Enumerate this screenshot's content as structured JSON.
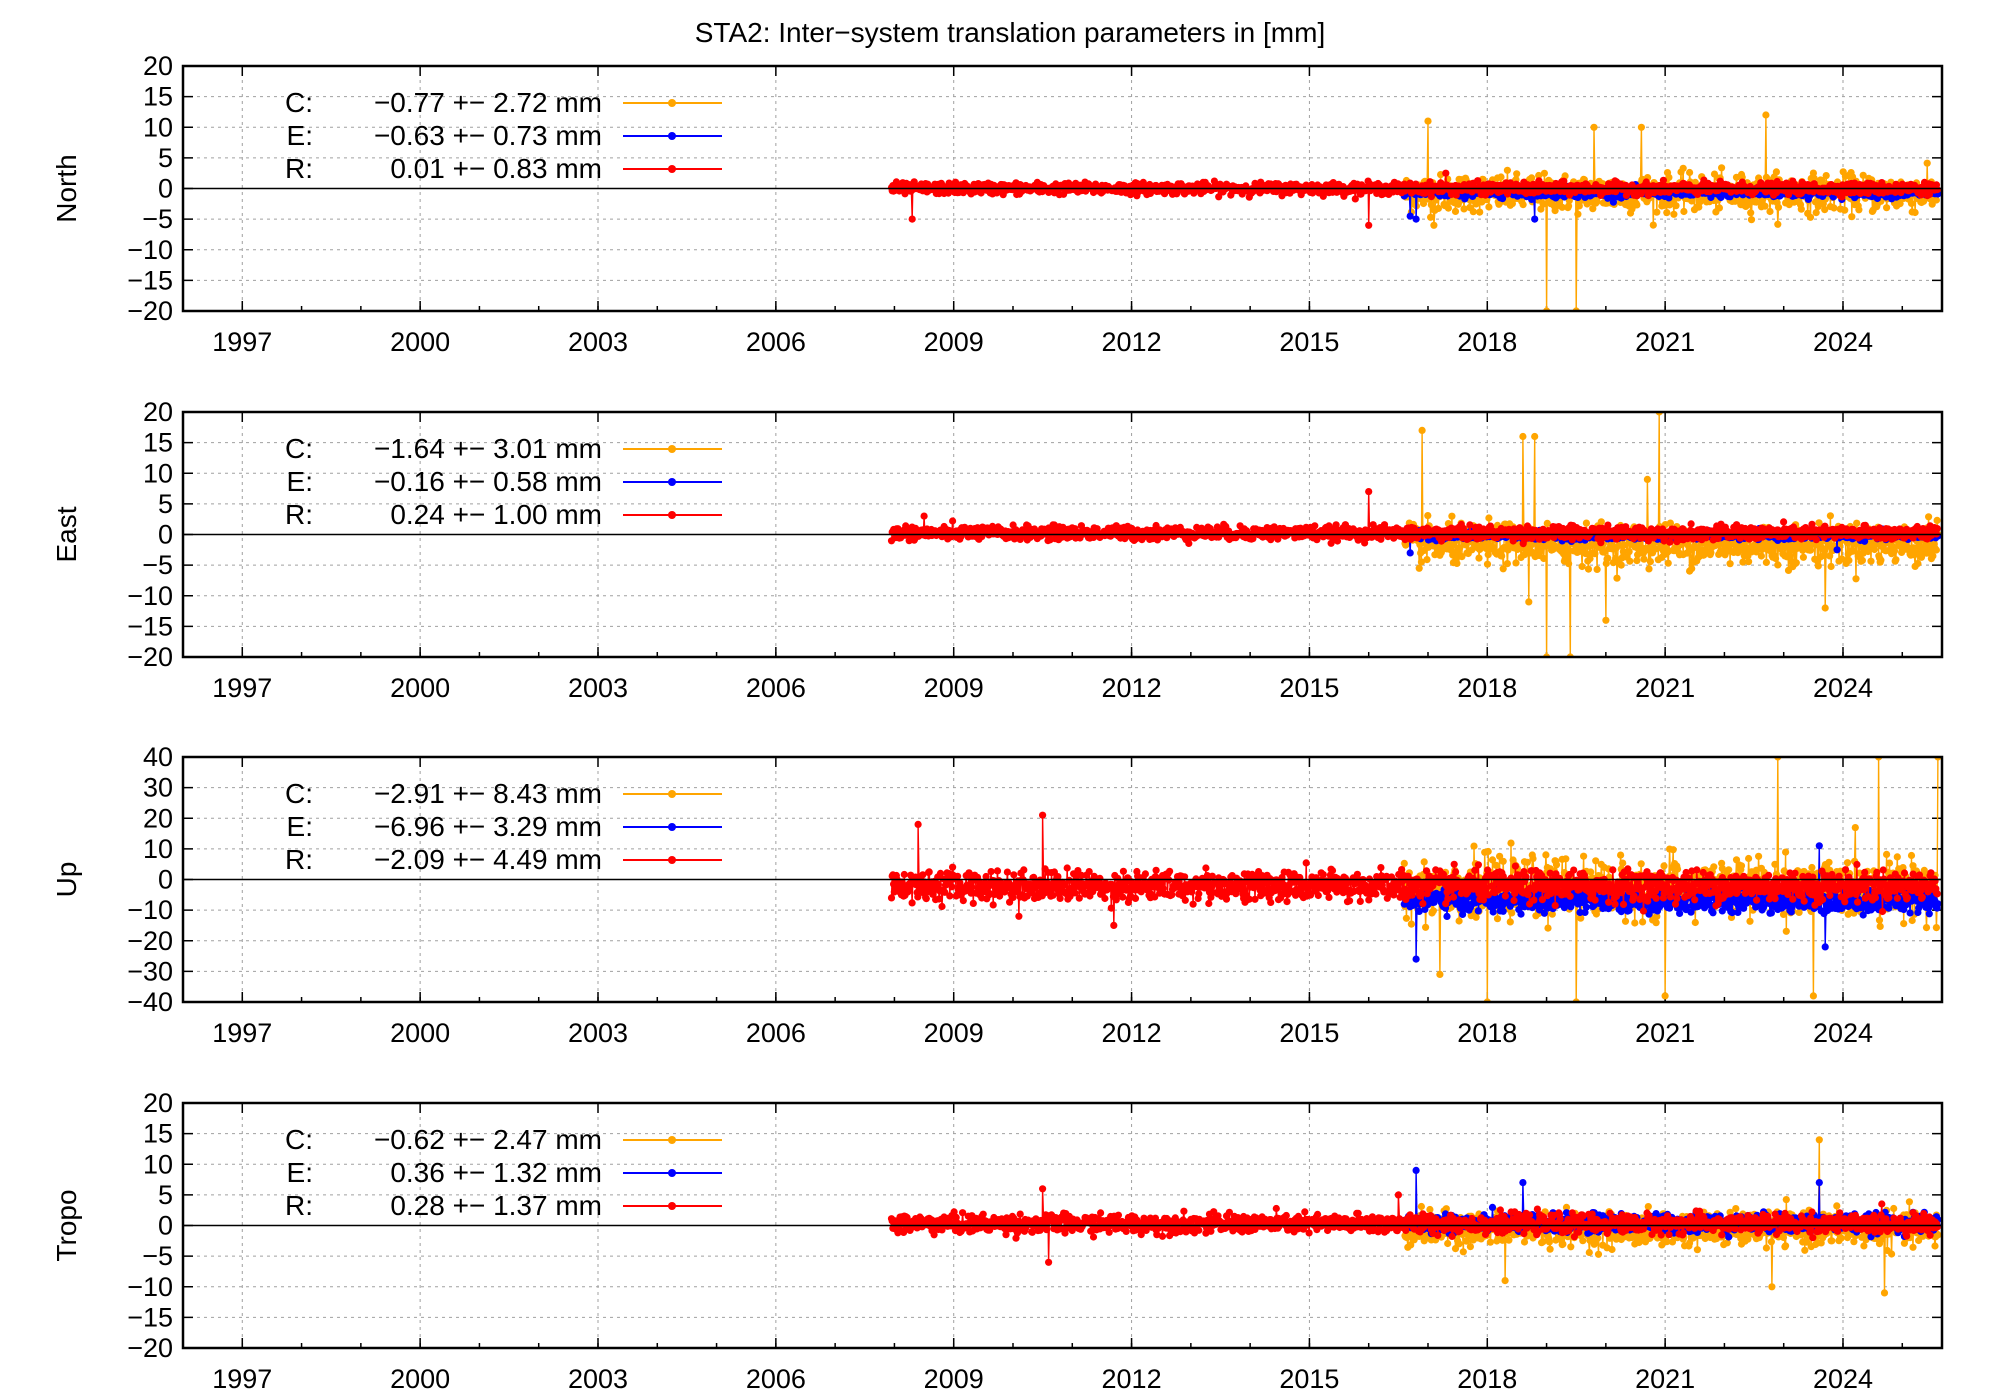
{
  "title": "STA2: Inter−system translation parameters in [mm]",
  "chart_data": [
    {
      "type": "line",
      "ylabel": "North",
      "ylim": [
        -20,
        20
      ],
      "yticks": [
        "20",
        "15",
        "10",
        "5",
        "0",
        "−5",
        "−10",
        "−15",
        "−20"
      ],
      "xticks": [
        "1997",
        "2000",
        "2003",
        "2006",
        "2009",
        "2012",
        "2015",
        "2018",
        "2021",
        "2024"
      ],
      "xlim": [
        1996.0,
        2025.67
      ],
      "series": [
        {
          "key": "C",
          "name": "C:",
          "stats": "−0.77 +− 2.72 mm",
          "color": "#FFA500",
          "start": 2016.6,
          "end": 2025.6,
          "mean": -0.77,
          "sd": 2.72,
          "spikes": [
            [
              2017.0,
              11
            ],
            [
              2019.0,
              -20
            ],
            [
              2019.5,
              -20
            ],
            [
              2019.8,
              10
            ],
            [
              2022.7,
              12
            ],
            [
              2020.6,
              10
            ],
            [
              2017.1,
              -6
            ]
          ]
        },
        {
          "key": "E",
          "name": "E:",
          "stats": "−0.63 +− 0.73 mm",
          "color": "#0000FF",
          "start": 2016.6,
          "end": 2025.6,
          "mean": -0.63,
          "sd": 0.73,
          "spikes": [
            [
              2016.7,
              -4.5
            ],
            [
              2016.8,
              -5
            ],
            [
              2018.8,
              -5
            ]
          ]
        },
        {
          "key": "R",
          "name": "R:",
          "stats": "0.01 +− 0.83 mm",
          "color": "#FF0000",
          "start": 2007.95,
          "end": 2025.6,
          "mean": 0.01,
          "sd": 0.83,
          "spikes": [
            [
              2016.0,
              -6
            ],
            [
              2008.3,
              -5
            ],
            [
              2017.3,
              2.5
            ]
          ]
        }
      ]
    },
    {
      "type": "line",
      "ylabel": "East",
      "ylim": [
        -20,
        20
      ],
      "yticks": [
        "20",
        "15",
        "10",
        "5",
        "0",
        "−5",
        "−10",
        "−15",
        "−20"
      ],
      "xticks": [
        "1997",
        "2000",
        "2003",
        "2006",
        "2009",
        "2012",
        "2015",
        "2018",
        "2021",
        "2024"
      ],
      "xlim": [
        1996.0,
        2025.67
      ],
      "series": [
        {
          "key": "C",
          "name": "C:",
          "stats": "−1.64 +− 3.01 mm",
          "color": "#FFA500",
          "start": 2016.6,
          "end": 2025.6,
          "mean": -1.64,
          "sd": 3.01,
          "spikes": [
            [
              2016.9,
              17
            ],
            [
              2018.6,
              16
            ],
            [
              2018.8,
              16
            ],
            [
              2019.0,
              16
            ],
            [
              2020.9,
              20
            ],
            [
              2020.7,
              9
            ],
            [
              2018.7,
              -11
            ],
            [
              2019.0,
              -20
            ],
            [
              2019.4,
              -20
            ],
            [
              2020.0,
              -14
            ],
            [
              2023.7,
              -12
            ]
          ]
        },
        {
          "key": "E",
          "name": "E:",
          "stats": "−0.16 +− 0.58 mm",
          "color": "#0000FF",
          "start": 2016.6,
          "end": 2025.6,
          "mean": -0.16,
          "sd": 0.58,
          "spikes": [
            [
              2016.7,
              -3
            ],
            [
              2023.9,
              -2.5
            ]
          ]
        },
        {
          "key": "R",
          "name": "R:",
          "stats": "0.24 +− 1.00 mm",
          "color": "#FF0000",
          "start": 2007.95,
          "end": 2025.6,
          "mean": 0.24,
          "sd": 1.0,
          "spikes": [
            [
              2016.0,
              7
            ],
            [
              2008.5,
              3
            ]
          ]
        }
      ]
    },
    {
      "type": "line",
      "ylabel": "Up",
      "ylim": [
        -40,
        40
      ],
      "yticks": [
        "40",
        "30",
        "20",
        "10",
        "0",
        "−10",
        "−20",
        "−30",
        "−40"
      ],
      "xticks": [
        "1997",
        "2000",
        "2003",
        "2006",
        "2009",
        "2012",
        "2015",
        "2018",
        "2021",
        "2024"
      ],
      "xlim": [
        1996.0,
        2025.67
      ],
      "series": [
        {
          "key": "C",
          "name": "C:",
          "stats": "−2.91 +− 8.43 mm",
          "color": "#FFA500",
          "start": 2016.6,
          "end": 2025.6,
          "mean": -2.91,
          "sd": 8.43,
          "spikes": [
            [
              2022.9,
              40
            ],
            [
              2024.6,
              40
            ],
            [
              2025.6,
              40
            ],
            [
              2017.2,
              -31
            ],
            [
              2018.0,
              -40
            ],
            [
              2019.5,
              -40
            ],
            [
              2021.0,
              -38
            ],
            [
              2023.5,
              -38
            ]
          ]
        },
        {
          "key": "E",
          "name": "E:",
          "stats": "−6.96 +− 3.29 mm",
          "color": "#0000FF",
          "start": 2016.6,
          "end": 2025.6,
          "mean": -6.96,
          "sd": 3.29,
          "spikes": [
            [
              2016.8,
              -26
            ],
            [
              2023.6,
              11
            ],
            [
              2023.7,
              -22
            ]
          ]
        },
        {
          "key": "R",
          "name": "R:",
          "stats": "−2.09 +− 4.49 mm",
          "color": "#FF0000",
          "start": 2007.95,
          "end": 2025.6,
          "mean": -2.09,
          "sd": 4.49,
          "spikes": [
            [
              2008.4,
              18
            ],
            [
              2010.5,
              21
            ],
            [
              2011.7,
              -15
            ],
            [
              2010.1,
              -12
            ]
          ]
        }
      ]
    },
    {
      "type": "line",
      "ylabel": "Tropo",
      "ylim": [
        -20,
        20
      ],
      "yticks": [
        "20",
        "15",
        "10",
        "5",
        "0",
        "−5",
        "−10",
        "−15",
        "−20"
      ],
      "xticks": [
        "1997",
        "2000",
        "2003",
        "2006",
        "2009",
        "2012",
        "2015",
        "2018",
        "2021",
        "2024"
      ],
      "xlim": [
        1996.0,
        2025.67
      ],
      "series": [
        {
          "key": "C",
          "name": "C:",
          "stats": "−0.62 +− 2.47 mm",
          "color": "#FFA500",
          "start": 2016.6,
          "end": 2025.6,
          "mean": -0.62,
          "sd": 2.47,
          "spikes": [
            [
              2023.6,
              14
            ],
            [
              2024.7,
              -11
            ],
            [
              2018.3,
              -9
            ],
            [
              2022.8,
              -10
            ]
          ]
        },
        {
          "key": "E",
          "name": "E:",
          "stats": "0.36 +− 1.32 mm",
          "color": "#0000FF",
          "start": 2016.6,
          "end": 2025.6,
          "mean": 0.36,
          "sd": 1.32,
          "spikes": [
            [
              2016.8,
              9
            ],
            [
              2018.6,
              7
            ],
            [
              2023.6,
              7
            ]
          ]
        },
        {
          "key": "R",
          "name": "R:",
          "stats": "0.28 +− 1.37 mm",
          "color": "#FF0000",
          "start": 2007.95,
          "end": 2025.6,
          "mean": 0.28,
          "sd": 1.37,
          "spikes": [
            [
              2010.5,
              6
            ],
            [
              2010.6,
              -6
            ],
            [
              2016.5,
              5
            ]
          ]
        }
      ]
    }
  ]
}
